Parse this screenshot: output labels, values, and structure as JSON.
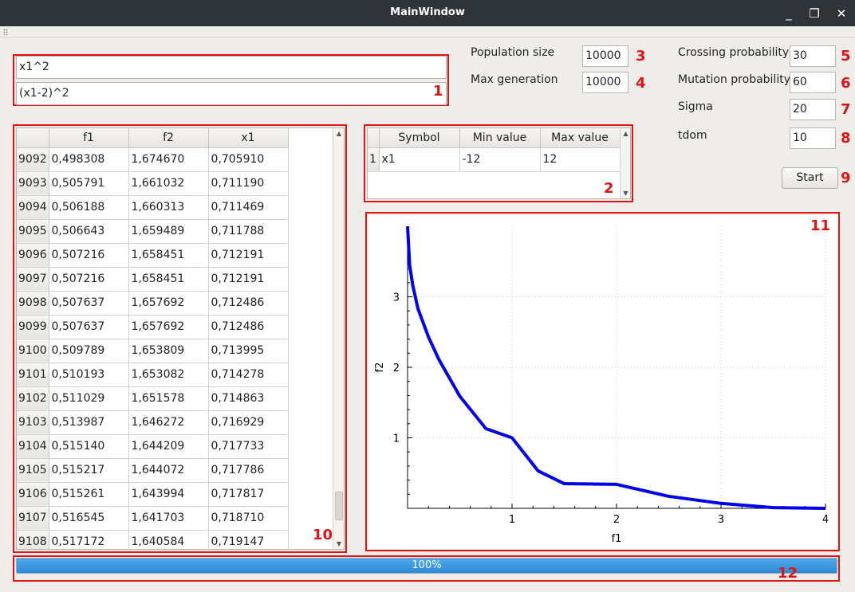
{
  "window": {
    "title": "MainWindow",
    "minimize_icon": "minimize-icon",
    "maximize_icon": "maximize-icon",
    "close_icon": "close-icon"
  },
  "functions": [
    "x1^2",
    "(x1-2)^2"
  ],
  "params_left": [
    {
      "label": "Population size",
      "value": "10000"
    },
    {
      "label": "Max generation",
      "value": "10000"
    }
  ],
  "params_right": [
    {
      "label": "Crossing probability",
      "value": "30"
    },
    {
      "label": "Mutation probability",
      "value": "60"
    },
    {
      "label": "Sigma",
      "value": "20"
    },
    {
      "label": "tdom",
      "value": "10"
    }
  ],
  "start_button": "Start",
  "variables": {
    "headers": [
      "Symbol",
      "Min value",
      "Max value"
    ],
    "rows": [
      {
        "index": "1",
        "cells": [
          "x1",
          "-12",
          "12"
        ]
      }
    ]
  },
  "results": {
    "headers": [
      "f1",
      "f2",
      "x1"
    ],
    "rows": [
      {
        "index": "9092",
        "cells": [
          "0,498308",
          "1,674670",
          "0,705910"
        ]
      },
      {
        "index": "9093",
        "cells": [
          "0,505791",
          "1,661032",
          "0,711190"
        ]
      },
      {
        "index": "9094",
        "cells": [
          "0,506188",
          "1,660313",
          "0,711469"
        ]
      },
      {
        "index": "9095",
        "cells": [
          "0,506643",
          "1,659489",
          "0,711788"
        ]
      },
      {
        "index": "9096",
        "cells": [
          "0,507216",
          "1,658451",
          "0,712191"
        ]
      },
      {
        "index": "9097",
        "cells": [
          "0,507216",
          "1,658451",
          "0,712191"
        ]
      },
      {
        "index": "9098",
        "cells": [
          "0,507637",
          "1,657692",
          "0,712486"
        ]
      },
      {
        "index": "9099",
        "cells": [
          "0,507637",
          "1,657692",
          "0,712486"
        ]
      },
      {
        "index": "9100",
        "cells": [
          "0,509789",
          "1,653809",
          "0,713995"
        ]
      },
      {
        "index": "9101",
        "cells": [
          "0,510193",
          "1,653082",
          "0,714278"
        ]
      },
      {
        "index": "9102",
        "cells": [
          "0,511029",
          "1,651578",
          "0,714863"
        ]
      },
      {
        "index": "9103",
        "cells": [
          "0,513987",
          "1,646272",
          "0,716929"
        ]
      },
      {
        "index": "9104",
        "cells": [
          "0,515140",
          "1,644209",
          "0,717733"
        ]
      },
      {
        "index": "9105",
        "cells": [
          "0,515217",
          "1,644072",
          "0,717786"
        ]
      },
      {
        "index": "9106",
        "cells": [
          "0,515261",
          "1,643994",
          "0,717817"
        ]
      },
      {
        "index": "9107",
        "cells": [
          "0,516545",
          "1,641703",
          "0,718710"
        ]
      },
      {
        "index": "9108",
        "cells": [
          "0,517172",
          "1,640584",
          "0,719147"
        ]
      }
    ]
  },
  "annotations": [
    "1",
    "2",
    "3",
    "4",
    "5",
    "6",
    "7",
    "8",
    "9",
    "10",
    "11",
    "12"
  ],
  "progress": {
    "value": 1.0,
    "text": "100%"
  },
  "colors": {
    "annotation": "#e01414",
    "curve": "#0000ee",
    "progress": "#3a95df"
  },
  "chart_data": {
    "type": "scatter",
    "xlabel": "f1",
    "ylabel": "f2",
    "xlim": [
      0,
      4
    ],
    "ylim": [
      0,
      4
    ],
    "xticks": [
      "1",
      "2",
      "3",
      "4"
    ],
    "yticks": [
      "1",
      "2",
      "3"
    ],
    "grid": true,
    "series": [
      {
        "x": [
          0,
          0.02,
          0.05,
          0.1,
          0.2,
          0.3,
          0.5,
          0.75,
          1,
          1.25,
          1.5,
          2,
          2.5,
          3,
          3.5,
          4
        ],
        "y": [
          4,
          3.45,
          3.16,
          2.83,
          2.43,
          2.11,
          1.59,
          1.13,
          1,
          0.53,
          0.35,
          0.34,
          0.17,
          0.07,
          0.01,
          0
        ]
      }
    ]
  }
}
